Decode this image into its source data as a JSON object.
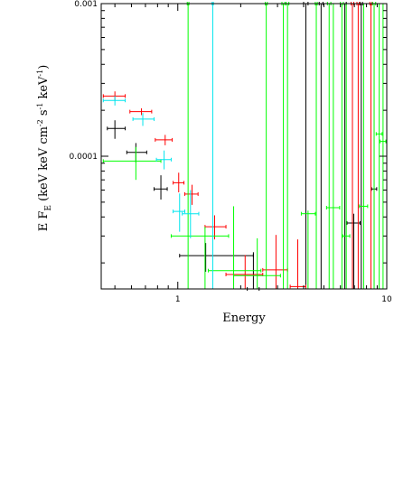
{
  "chart_data": {
    "type": "scatter",
    "title": "",
    "xlabel": "Energy",
    "ylabel_parts": {
      "base": "E F",
      "sub": "E",
      "rest1": " (keV keV cm",
      "sup1": "-2",
      "rest2": " s",
      "sup2": "-1",
      "rest3": " keV",
      "sup3": "-1",
      "rest4": ")"
    },
    "xscale": "log",
    "yscale": "log",
    "xlim": [
      0.43,
      10
    ],
    "ylim": [
      1.35e-05,
      0.001
    ],
    "grid": false,
    "x_tick_labels": [
      {
        "value": 1,
        "label": "1"
      },
      {
        "value": 10,
        "label": "10"
      }
    ],
    "y_tick_labels": [
      {
        "value": 0.0001,
        "label": "0.0001"
      },
      {
        "value": 0.001,
        "label": "0.001"
      }
    ],
    "series": [
      {
        "color": "#000000",
        "points": [
          {
            "x": 0.5,
            "xlo": 0.46,
            "xhi": 0.56,
            "y": 0.000152,
            "ylo": 0.00013,
            "yhi": 0.000172
          },
          {
            "x": 0.63,
            "xlo": 0.57,
            "xhi": 0.71,
            "y": 0.000106,
            "ylo": 9.1e-05,
            "yhi": 0.000122
          },
          {
            "x": 0.83,
            "xlo": 0.77,
            "xhi": 0.89,
            "y": 6.1e-05,
            "ylo": 5.2e-05,
            "yhi": 7.5e-05
          },
          {
            "x": 1.36,
            "xlo": 1.02,
            "xhi": 2.3,
            "y": 2.23e-05,
            "ylo": 1.75e-05,
            "yhi": 2.7e-05
          },
          {
            "x": 2.3,
            "xlo": 2.15,
            "xhi": 2.45,
            "y": 1.35e-05,
            "ylo": 1.35e-05,
            "yhi": 2.35e-05
          },
          {
            "x": 4.1,
            "xlo": 4.0,
            "xhi": 4.2,
            "y": 0.001,
            "ylo": 1.35e-05,
            "yhi": 0.001
          },
          {
            "x": 4.85,
            "xlo": 4.75,
            "xhi": 4.95,
            "y": 0.001,
            "ylo": 1.35e-05,
            "yhi": 0.001
          },
          {
            "x": 6.3,
            "xlo": 6.2,
            "xhi": 6.4,
            "y": 0.001,
            "ylo": 1.35e-05,
            "yhi": 0.001
          },
          {
            "x": 6.95,
            "xlo": 6.45,
            "xhi": 7.45,
            "y": 3.65e-05,
            "ylo": 1.35e-05,
            "yhi": 4.2e-05
          },
          {
            "x": 7.55,
            "xlo": 7.45,
            "xhi": 7.65,
            "y": 0.001,
            "ylo": 1.35e-05,
            "yhi": 0.001
          },
          {
            "x": 8.7,
            "xlo": 8.45,
            "xhi": 8.95,
            "y": 6.1e-05,
            "ylo": 1.35e-05,
            "yhi": 0.001
          }
        ]
      },
      {
        "color": "#ff0000",
        "points": [
          {
            "x": 0.5,
            "xlo": 0.44,
            "xhi": 0.56,
            "y": 0.000248,
            "ylo": 0.000231,
            "yhi": 0.000266
          },
          {
            "x": 0.67,
            "xlo": 0.59,
            "xhi": 0.75,
            "y": 0.000196,
            "ylo": 0.000186,
            "yhi": 0.000206
          },
          {
            "x": 0.87,
            "xlo": 0.78,
            "xhi": 0.94,
            "y": 0.000128,
            "ylo": 0.000118,
            "yhi": 0.000138
          },
          {
            "x": 1.01,
            "xlo": 0.95,
            "xhi": 1.07,
            "y": 6.7e-05,
            "ylo": 5.8e-05,
            "yhi": 7.8e-05
          },
          {
            "x": 1.17,
            "xlo": 1.08,
            "xhi": 1.25,
            "y": 5.65e-05,
            "ylo": 4.8e-05,
            "yhi": 6.5e-05
          },
          {
            "x": 1.5,
            "xlo": 1.35,
            "xhi": 1.7,
            "y": 3.45e-05,
            "ylo": 2.85e-05,
            "yhi": 4.1e-05
          },
          {
            "x": 2.1,
            "xlo": 1.7,
            "xhi": 2.55,
            "y": 1.68e-05,
            "ylo": 1.35e-05,
            "yhi": 2.25e-05
          },
          {
            "x": 2.95,
            "xlo": 2.55,
            "xhi": 3.35,
            "y": 1.8e-05,
            "ylo": 1.35e-05,
            "yhi": 3.05e-05
          },
          {
            "x": 3.75,
            "xlo": 3.45,
            "xhi": 4.1,
            "y": 1.4e-05,
            "ylo": 1.35e-05,
            "yhi": 2.85e-05
          },
          {
            "x": 6.85,
            "xlo": 6.75,
            "xhi": 6.95,
            "y": 0.001,
            "ylo": 1.35e-05,
            "yhi": 0.001
          },
          {
            "x": 7.3,
            "xlo": 7.2,
            "xhi": 7.4,
            "y": 0.001,
            "ylo": 1.35e-05,
            "yhi": 0.001
          },
          {
            "x": 8.4,
            "xlo": 8.3,
            "xhi": 8.5,
            "y": 0.001,
            "ylo": 1.35e-05,
            "yhi": 0.001
          }
        ]
      },
      {
        "color": "#00ff00",
        "points": [
          {
            "x": 0.63,
            "xlo": 0.44,
            "xhi": 0.83,
            "y": 9.3e-05,
            "ylo": 7e-05,
            "yhi": 0.000115
          },
          {
            "x": 1.12,
            "xlo": 1.11,
            "xhi": 1.13,
            "y": 0.001,
            "ylo": 1.35e-05,
            "yhi": 0.001
          },
          {
            "x": 1.35,
            "xlo": 0.93,
            "xhi": 1.75,
            "y": 3e-05,
            "ylo": 1.35e-05,
            "yhi": 3.45e-05
          },
          {
            "x": 1.85,
            "xlo": 1.4,
            "xhi": 2.5,
            "y": 1.78e-05,
            "ylo": 1.35e-05,
            "yhi": 4.7e-05
          },
          {
            "x": 2.4,
            "xlo": 1.85,
            "xhi": 3.1,
            "y": 1.65e-05,
            "ylo": 1.35e-05,
            "yhi": 2.9e-05
          },
          {
            "x": 2.65,
            "xlo": 2.62,
            "xhi": 2.68,
            "y": 0.001,
            "ylo": 1.35e-05,
            "yhi": 0.001
          },
          {
            "x": 3.2,
            "xlo": 3.15,
            "xhi": 3.25,
            "y": 0.001,
            "ylo": 1.35e-05,
            "yhi": 0.001
          },
          {
            "x": 3.35,
            "xlo": 3.3,
            "xhi": 3.4,
            "y": 0.001,
            "ylo": 1.35e-05,
            "yhi": 0.001
          },
          {
            "x": 4.2,
            "xlo": 3.9,
            "xhi": 4.55,
            "y": 4.2e-05,
            "ylo": 1.35e-05,
            "yhi": 4.4e-05
          },
          {
            "x": 4.6,
            "xlo": 4.55,
            "xhi": 4.65,
            "y": 0.001,
            "ylo": 1.35e-05,
            "yhi": 0.001
          },
          {
            "x": 5.3,
            "xlo": 5.2,
            "xhi": 5.4,
            "y": 0.001,
            "ylo": 1.35e-05,
            "yhi": 0.001
          },
          {
            "x": 5.55,
            "xlo": 5.15,
            "xhi": 5.95,
            "y": 4.6e-05,
            "ylo": 1.35e-05,
            "yhi": 0.001
          },
          {
            "x": 6.1,
            "xlo": 6.0,
            "xhi": 6.2,
            "y": 0.001,
            "ylo": 1.35e-05,
            "yhi": 0.001
          },
          {
            "x": 6.4,
            "xlo": 6.15,
            "xhi": 6.65,
            "y": 3e-05,
            "ylo": 1.35e-05,
            "yhi": 0.001
          },
          {
            "x": 7.75,
            "xlo": 7.4,
            "xhi": 8.1,
            "y": 4.7e-05,
            "ylo": 1.35e-05,
            "yhi": 0.001
          },
          {
            "x": 8.7,
            "xlo": 8.55,
            "xhi": 8.85,
            "y": 0.001,
            "ylo": 1.35e-05,
            "yhi": 0.001
          },
          {
            "x": 9.2,
            "xlo": 8.9,
            "xhi": 9.5,
            "y": 0.00014,
            "ylo": 1.35e-05,
            "yhi": 0.001
          },
          {
            "x": 9.6,
            "xlo": 9.3,
            "xhi": 9.9,
            "y": 0.000125,
            "ylo": 1.35e-05,
            "yhi": 0.001
          }
        ]
      },
      {
        "color": "#00e5ee",
        "points": [
          {
            "x": 0.5,
            "xlo": 0.44,
            "xhi": 0.56,
            "y": 0.000232,
            "ylo": 0.000215,
            "yhi": 0.000248
          },
          {
            "x": 0.68,
            "xlo": 0.61,
            "xhi": 0.77,
            "y": 0.000175,
            "ylo": 0.000158,
            "yhi": 0.000192
          },
          {
            "x": 0.86,
            "xlo": 0.79,
            "xhi": 0.93,
            "y": 9.5e-05,
            "ylo": 8.2e-05,
            "yhi": 0.000109
          },
          {
            "x": 1.02,
            "xlo": 0.95,
            "xhi": 1.08,
            "y": 4.35e-05,
            "ylo": 3.2e-05,
            "yhi": 5.7e-05
          },
          {
            "x": 1.15,
            "xlo": 1.05,
            "xhi": 1.26,
            "y": 4.2e-05,
            "ylo": 2.9e-05,
            "yhi": 6e-05
          },
          {
            "x": 1.47,
            "xlo": 1.46,
            "xhi": 1.48,
            "y": 0.001,
            "ylo": 1.35e-05,
            "yhi": 0.001
          }
        ]
      }
    ]
  }
}
